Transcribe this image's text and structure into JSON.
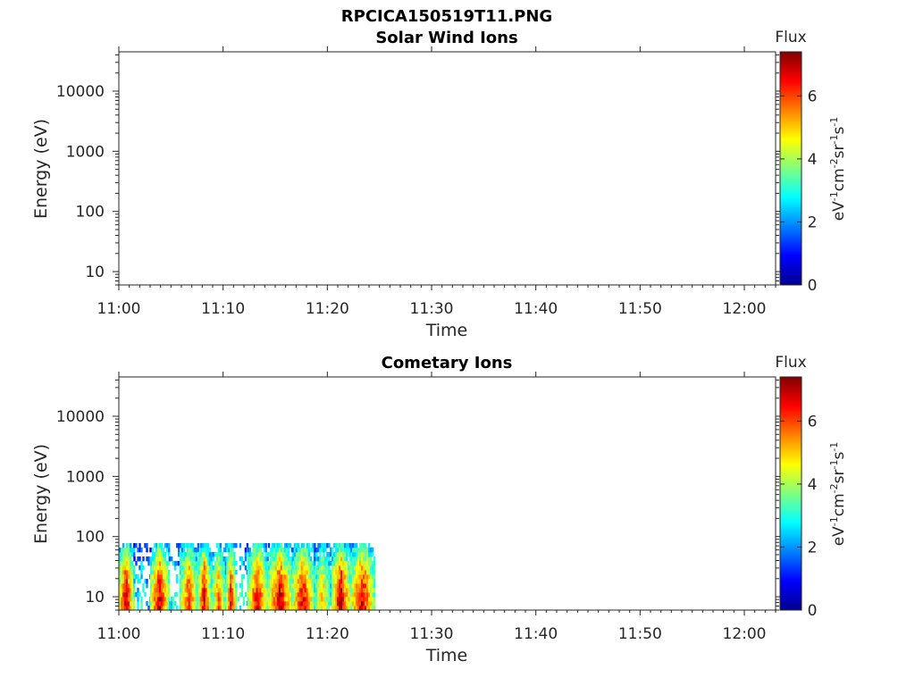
{
  "figure": {
    "title": "RPCICA150519T11.PNG"
  },
  "colormap": {
    "name": "jet",
    "stops": [
      "#00008f",
      "#0000ff",
      "#00ffff",
      "#80ff80",
      "#ffff00",
      "#ff8000",
      "#ff0000",
      "#800000"
    ]
  },
  "chart_data": [
    {
      "type": "heatmap",
      "title": "Solar Wind Ions",
      "xlabel": "Time",
      "ylabel": "Energy (eV)",
      "x_ticks": [
        "11:00",
        "11:10",
        "11:20",
        "11:30",
        "11:40",
        "11:50",
        "12:00"
      ],
      "x_range_minutes": [
        0,
        63
      ],
      "y_scale": "log",
      "y_ticks": [
        "10",
        "100",
        "1000",
        "10000"
      ],
      "y_range": [
        6,
        45000
      ],
      "colorbar": {
        "label": "Flux",
        "unit": "eV-1cm-2sr-1s-1",
        "ticks": [
          "0",
          "2",
          "4",
          "6"
        ],
        "range": [
          0,
          7.4
        ]
      },
      "data_present": false,
      "segments": []
    },
    {
      "type": "heatmap",
      "title": "Cometary Ions",
      "xlabel": "Time",
      "ylabel": "Energy (eV)",
      "x_ticks": [
        "11:00",
        "11:10",
        "11:20",
        "11:30",
        "11:40",
        "11:50",
        "12:00"
      ],
      "x_range_minutes": [
        0,
        63
      ],
      "y_scale": "log",
      "y_ticks": [
        "10",
        "100",
        "1000",
        "10000"
      ],
      "y_range": [
        6,
        45000
      ],
      "colorbar": {
        "label": "Flux",
        "unit": "eV-1cm-2sr-1s-1",
        "ticks": [
          "0",
          "2",
          "4",
          "6"
        ],
        "range": [
          0,
          7.4
        ]
      },
      "data_present": true,
      "energy_max_eV": 80,
      "segments": [
        {
          "start_min": 0.0,
          "end_min": 1.4,
          "peak_flux": 7.2
        },
        {
          "start_min": 1.4,
          "end_min": 3.0,
          "peak_flux": 3.2
        },
        {
          "start_min": 3.0,
          "end_min": 4.8,
          "peak_flux": 7.0
        },
        {
          "start_min": 4.8,
          "end_min": 5.8,
          "peak_flux": 3.5
        },
        {
          "start_min": 5.8,
          "end_min": 7.6,
          "peak_flux": 6.4
        },
        {
          "start_min": 7.6,
          "end_min": 8.8,
          "peak_flux": 7.0
        },
        {
          "start_min": 8.8,
          "end_min": 10.3,
          "peak_flux": 5.8
        },
        {
          "start_min": 10.3,
          "end_min": 11.2,
          "peak_flux": 6.8
        },
        {
          "start_min": 11.2,
          "end_min": 12.3,
          "peak_flux": 3.6
        },
        {
          "start_min": 12.3,
          "end_min": 14.3,
          "peak_flux": 6.8
        },
        {
          "start_min": 14.3,
          "end_min": 16.6,
          "peak_flux": 7.1
        },
        {
          "start_min": 16.6,
          "end_min": 18.7,
          "peak_flux": 6.9
        },
        {
          "start_min": 18.7,
          "end_min": 20.4,
          "peak_flux": 5.2
        },
        {
          "start_min": 20.4,
          "end_min": 22.2,
          "peak_flux": 7.2
        },
        {
          "start_min": 22.2,
          "end_min": 24.5,
          "peak_flux": 7.0
        }
      ]
    }
  ]
}
